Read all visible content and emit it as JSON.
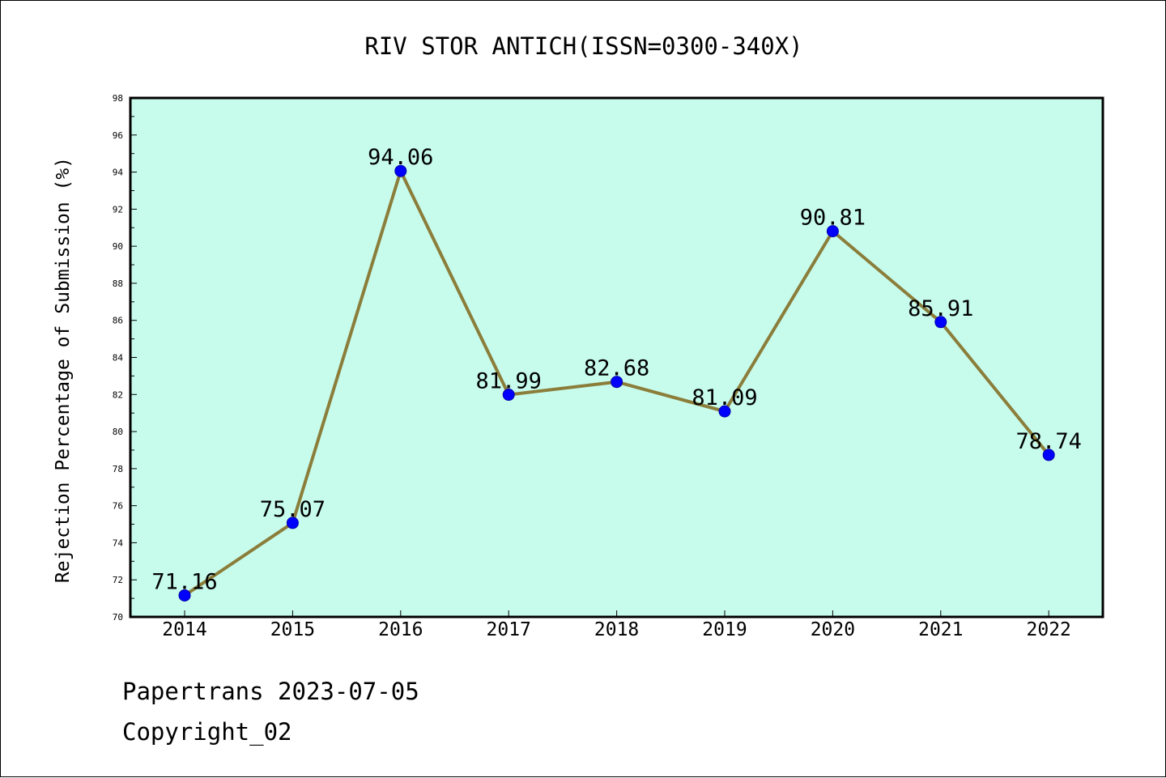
{
  "chart_data": {
    "type": "line",
    "title": "RIV STOR ANTICH(ISSN=0300-340X)",
    "ylabel": "Rejection Percentage of Submission (%)",
    "xlabel": "",
    "categories": [
      "2014",
      "2015",
      "2016",
      "2017",
      "2018",
      "2019",
      "2020",
      "2021",
      "2022"
    ],
    "series": [
      {
        "values": [
          71.16,
          75.07,
          94.06,
          81.99,
          82.68,
          81.09,
          90.81,
          85.91,
          78.74
        ]
      }
    ],
    "data_labels": [
      "71.16",
      "75.07",
      "94.06",
      "81.99",
      "82.68",
      "81.09",
      "90.81",
      "85.91",
      "78.74"
    ],
    "ylim": [
      70,
      98
    ],
    "yticks": [
      "70",
      "72",
      "74",
      "76",
      "78",
      "80",
      "82",
      "84",
      "86",
      "88",
      "90",
      "92",
      "94",
      "96",
      "98"
    ],
    "grid": false,
    "colors": {
      "plot_background": "#c7fcec",
      "line": "#8b7d3a",
      "marker": "#0000ff"
    }
  },
  "footer": {
    "line1": "Papertrans 2023-07-05",
    "line2": "Copyright_02"
  }
}
